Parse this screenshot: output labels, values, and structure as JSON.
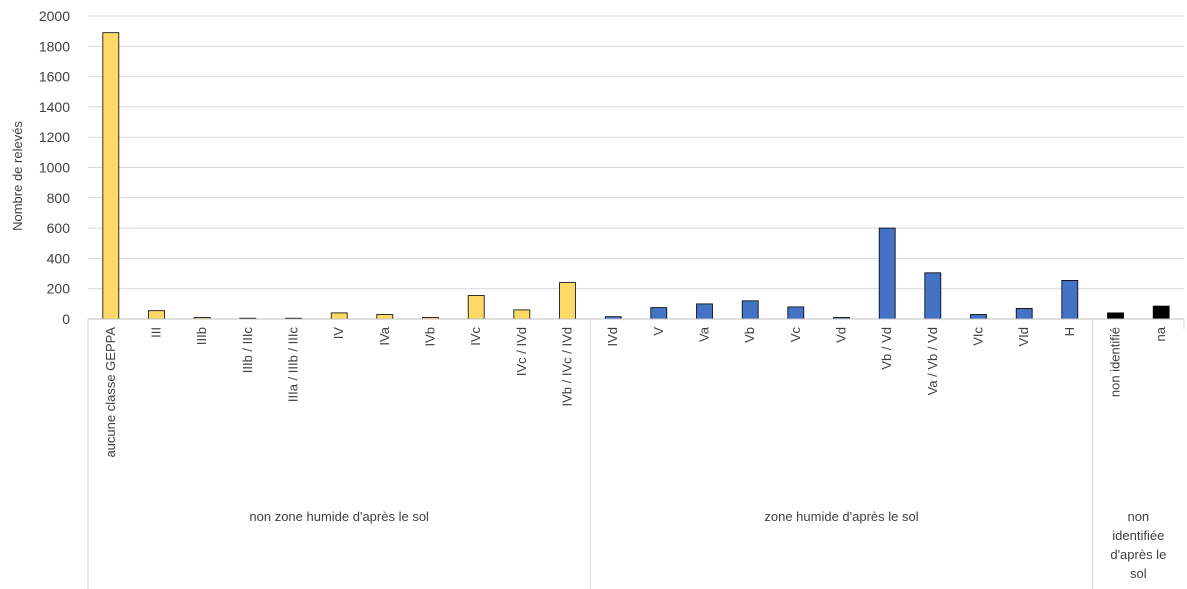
{
  "chart_data": {
    "type": "bar",
    "title": "",
    "xlabel": "",
    "ylabel": "Nombre de relevés",
    "ylim": [
      0,
      2000
    ],
    "yticks": [
      0,
      200,
      400,
      600,
      800,
      1000,
      1200,
      1400,
      1600,
      1800,
      2000
    ],
    "grid": true,
    "legend": "none",
    "categories": [
      "aucune classe GEPPA",
      "III",
      "IIIb",
      "IIIb / IIIc",
      "IIIa / IIIb / IIIc",
      "IV",
      "IVa",
      "IVb",
      "IVc",
      "IVc / IVd",
      "IVb / IVc / IVd",
      "IVd",
      "V",
      "Va",
      "Vb",
      "Vc",
      "Vd",
      "Vb / Vd",
      "Va / Vb / Vd",
      "VIc",
      "VId",
      "H",
      "non identifié",
      "na"
    ],
    "values": [
      1890,
      55,
      10,
      5,
      5,
      40,
      30,
      10,
      155,
      60,
      240,
      15,
      75,
      100,
      120,
      80,
      10,
      600,
      305,
      30,
      70,
      255,
      40,
      85
    ],
    "groups": [
      {
        "label_lines": [
          "non zone humide d'après le sol"
        ],
        "start": 0,
        "count": 11,
        "color": "#FFD966"
      },
      {
        "label_lines": [
          "zone humide d'après le sol"
        ],
        "start": 11,
        "count": 11,
        "color": "#4472C4"
      },
      {
        "label_lines": [
          "non",
          "identifiée",
          "d'après le",
          "sol"
        ],
        "start": 22,
        "count": 2,
        "color": "#000000"
      }
    ]
  }
}
